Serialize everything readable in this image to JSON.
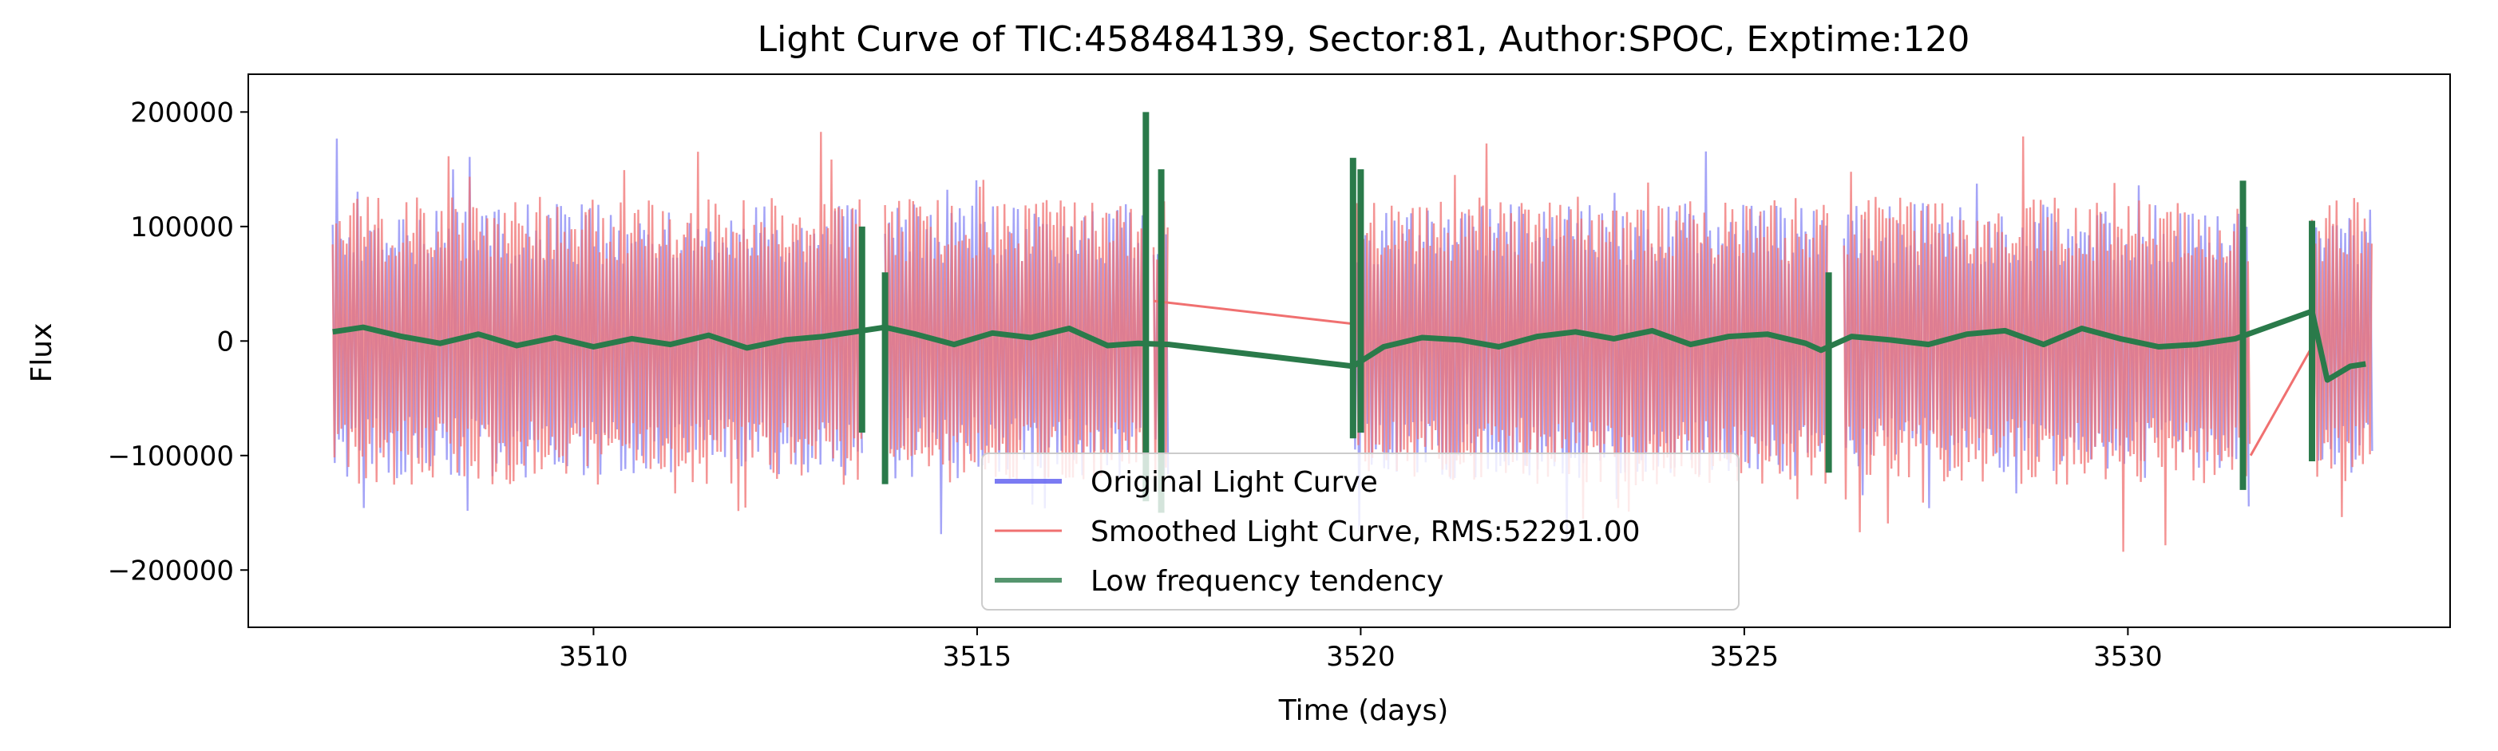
{
  "chart_data": {
    "type": "line",
    "title": "Light Curve of TIC:458484139, Sector:81, Author:SPOC, Exptime:120",
    "xlabel": "Time (days)",
    "ylabel": "Flux",
    "xlim": [
      3505.5,
      3534.2
    ],
    "ylim": [
      -250000,
      233000
    ],
    "xticks": [
      3510,
      3515,
      3520,
      3525,
      3530
    ],
    "xtick_labels": [
      "3510",
      "3515",
      "3520",
      "3525",
      "3530"
    ],
    "yticks": [
      -200000,
      -100000,
      0,
      100000,
      200000
    ],
    "ytick_labels": [
      "−200000",
      "−100000",
      "0",
      "100000",
      "200000"
    ],
    "grid": false,
    "legend_position": "bottom-center",
    "data_segments_days": [
      [
        3506.6,
        3513.5
      ],
      [
        3513.8,
        3517.2
      ],
      [
        3517.3,
        3517.5
      ],
      [
        3519.9,
        3526.1
      ],
      [
        3526.3,
        3531.6
      ],
      [
        3532.4,
        3533.2
      ]
    ],
    "series": [
      {
        "name": "Original Light Curve",
        "color": "#5a5af0",
        "kind": "raw",
        "typical_range": [
          -110000,
          130000
        ],
        "extremes": [
          -228000,
          208000
        ]
      },
      {
        "name": "Smoothed Light Curve, RMS:52291.00",
        "color": "#f07070",
        "kind": "smoothed",
        "typical_range": [
          -105000,
          125000
        ],
        "gap_lines": [
          {
            "x": [
              3517.3,
              3519.9
            ],
            "y": [
              35000,
              15000
            ]
          },
          {
            "x": [
              3531.6,
              3532.4
            ],
            "y": [
              -100000,
              -5000
            ]
          }
        ]
      },
      {
        "name": "Low frequency tendency",
        "color": "#2a7a4a",
        "kind": "trend",
        "points": {
          "x": [
            3506.6,
            3507.0,
            3507.5,
            3508.0,
            3508.5,
            3509.0,
            3509.5,
            3510.0,
            3510.5,
            3511.0,
            3511.5,
            3512.0,
            3512.5,
            3513.0,
            3513.4,
            3513.8,
            3514.2,
            3514.7,
            3515.2,
            3515.7,
            3516.2,
            3516.7,
            3517.1,
            3517.5,
            3519.9,
            3520.3,
            3520.8,
            3521.3,
            3521.8,
            3522.3,
            3522.8,
            3523.3,
            3523.8,
            3524.3,
            3524.8,
            3525.3,
            3525.8,
            3526.0,
            3526.4,
            3526.9,
            3527.4,
            3527.9,
            3528.4,
            3528.9,
            3529.4,
            3529.9,
            3530.4,
            3530.9,
            3531.4,
            3532.4,
            3532.6,
            3532.9,
            3533.1
          ],
          "y": [
            8000,
            12000,
            4000,
            -2000,
            6000,
            -4000,
            3000,
            -5000,
            2000,
            -3000,
            5000,
            -6000,
            1000,
            4000,
            8000,
            12000,
            6000,
            -3000,
            7000,
            3000,
            11000,
            -4000,
            -2000,
            -3000,
            -22000,
            -5000,
            3000,
            1000,
            -5000,
            4000,
            8000,
            2000,
            9000,
            -3000,
            4000,
            6000,
            -2000,
            -8000,
            4000,
            1000,
            -3000,
            6000,
            9000,
            -3000,
            11000,
            2000,
            -5000,
            -3000,
            2000,
            26000,
            -34000,
            -22000,
            -20000
          ]
        }
      }
    ]
  }
}
